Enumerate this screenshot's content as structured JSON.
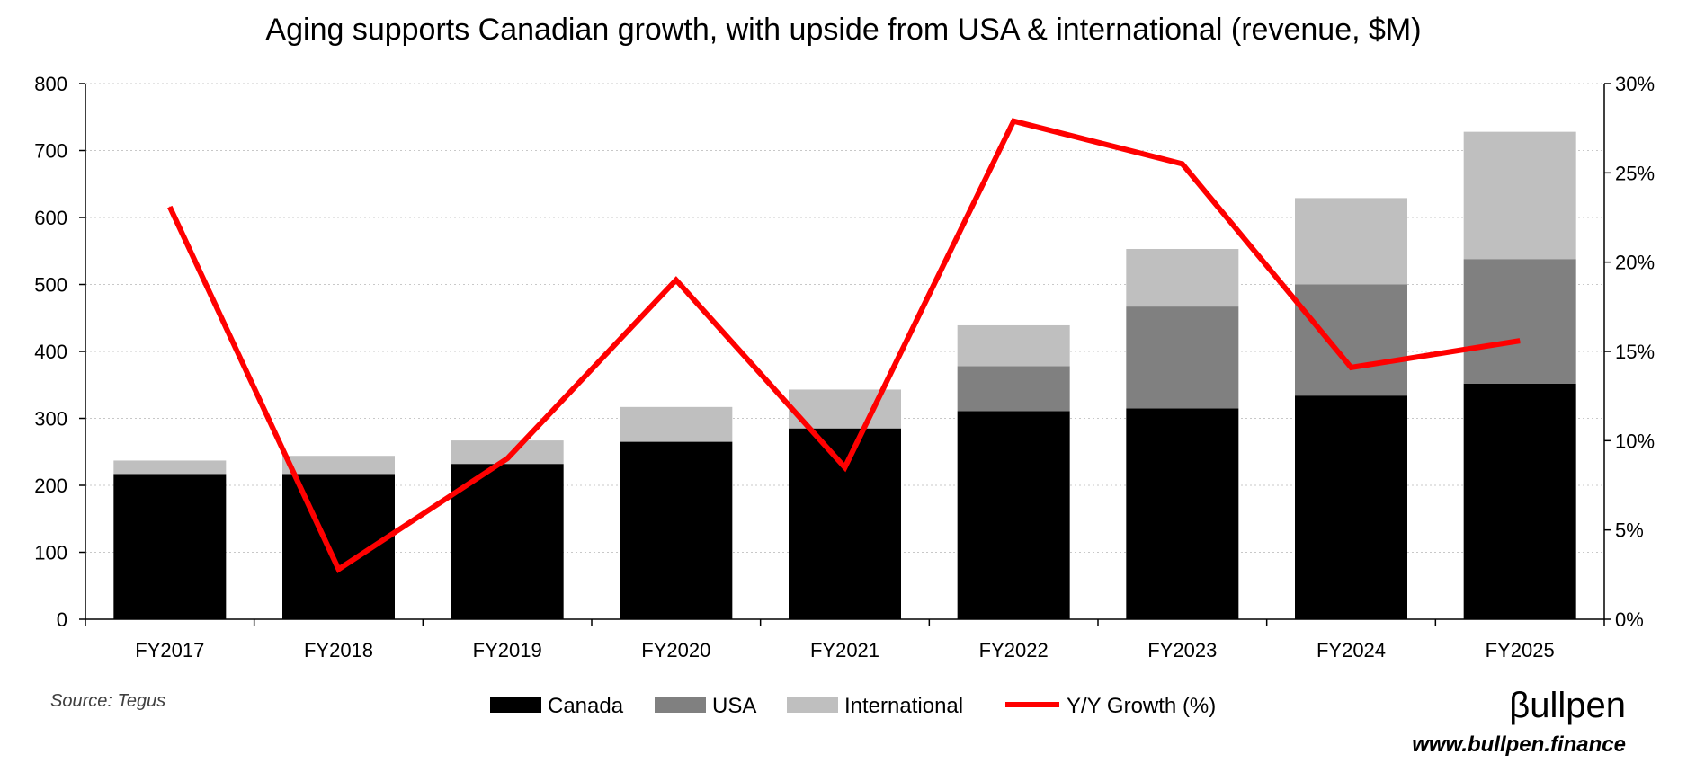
{
  "chart_data": {
    "type": "bar",
    "stacked": true,
    "title": "Aging supports Canadian growth, with upside from USA & international (revenue, $M)",
    "categories": [
      "FY2017",
      "FY2018",
      "FY2019",
      "FY2020",
      "FY2021",
      "FY2022",
      "FY2023",
      "FY2024",
      "FY2025"
    ],
    "series": [
      {
        "name": "Canada",
        "color": "#000000",
        "values": [
          217,
          217,
          232,
          265,
          285,
          311,
          315,
          334,
          352
        ]
      },
      {
        "name": "USA",
        "color": "#808080",
        "values": [
          0,
          0,
          0,
          0,
          0,
          67,
          152,
          166,
          186
        ]
      },
      {
        "name": "International",
        "color": "#bfbfbf",
        "values": [
          20,
          27,
          35,
          52,
          58,
          61,
          86,
          129,
          190
        ]
      }
    ],
    "line_series": {
      "name": "Y/Y Growth (%)",
      "color": "#ff0000",
      "axis": "right",
      "values": [
        23.1,
        2.8,
        9.0,
        19.0,
        8.5,
        27.9,
        25.5,
        14.1,
        15.6
      ]
    },
    "y_left": {
      "min": 0,
      "max": 800,
      "step": 100,
      "ticks": [
        "0",
        "100",
        "200",
        "300",
        "400",
        "500",
        "600",
        "700",
        "800"
      ]
    },
    "y_right": {
      "min": 0,
      "max": 30,
      "step": 5,
      "ticks": [
        "0%",
        "5%",
        "10%",
        "15%",
        "20%",
        "25%",
        "30%"
      ]
    },
    "grid": true,
    "legend_position": "bottom"
  },
  "footer": {
    "source": "Source: Tegus",
    "brand": "βullpen",
    "url": "www.bullpen.finance"
  }
}
